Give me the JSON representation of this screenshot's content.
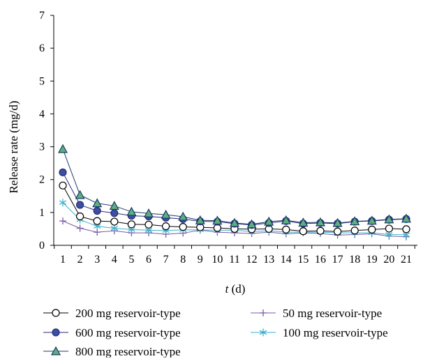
{
  "chart_data": {
    "type": "line",
    "title": "",
    "xlabel_var": "t",
    "xlabel_unit": " (d)",
    "ylabel": "Release rate (mg/d)",
    "ylim": [
      0,
      7
    ],
    "yticks": [
      0,
      1,
      2,
      3,
      4,
      5,
      6,
      7
    ],
    "x": [
      1,
      2,
      3,
      4,
      5,
      6,
      7,
      8,
      9,
      10,
      11,
      12,
      13,
      14,
      15,
      16,
      17,
      18,
      19,
      20,
      21
    ],
    "grid": false,
    "legend_position": "bottom",
    "series": [
      {
        "name": "200 mg reservoir-type",
        "marker": "open-circle",
        "color": "#000000",
        "marker_fill": "#ffffff",
        "values": [
          1.82,
          0.88,
          0.74,
          0.72,
          0.64,
          0.63,
          0.58,
          0.56,
          0.55,
          0.53,
          0.5,
          0.49,
          0.5,
          0.48,
          0.43,
          0.44,
          0.42,
          0.45,
          0.48,
          0.51,
          0.49
        ]
      },
      {
        "name": "600 mg reservoir-type",
        "marker": "filled-circle",
        "color": "#2a2a7a",
        "marker_fill": "#3a50a0",
        "values": [
          2.22,
          1.23,
          1.05,
          0.98,
          0.9,
          0.88,
          0.84,
          0.8,
          0.73,
          0.72,
          0.66,
          0.62,
          0.68,
          0.74,
          0.66,
          0.68,
          0.66,
          0.72,
          0.74,
          0.78,
          0.8
        ]
      },
      {
        "name": "800 mg reservoir-type",
        "marker": "triangle",
        "color": "#1a3a6a",
        "marker_fill": "#5cb07a",
        "values": [
          2.93,
          1.53,
          1.28,
          1.2,
          1.02,
          0.97,
          0.93,
          0.87,
          0.76,
          0.75,
          0.68,
          0.64,
          0.72,
          0.76,
          0.69,
          0.7,
          0.68,
          0.73,
          0.75,
          0.79,
          0.81
        ]
      },
      {
        "name": "50 mg reservoir-type",
        "marker": "plus",
        "color": "#7a5aa8",
        "marker_fill": "#7a5aa8",
        "values": [
          0.74,
          0.52,
          0.4,
          0.44,
          0.38,
          0.38,
          0.34,
          0.37,
          0.46,
          0.4,
          0.38,
          0.36,
          0.4,
          0.35,
          0.38,
          0.36,
          0.31,
          0.33,
          0.35,
          0.28,
          0.26
        ]
      },
      {
        "name": "100 mg reservoir-type",
        "marker": "asterisk",
        "color": "#3ab0c8",
        "marker_fill": "#3ab0c8",
        "values": [
          1.3,
          0.78,
          0.58,
          0.52,
          0.48,
          0.46,
          0.45,
          0.47,
          0.47,
          0.46,
          0.46,
          0.42,
          0.44,
          0.4,
          0.4,
          0.4,
          0.38,
          0.38,
          0.38,
          0.33,
          0.32
        ]
      }
    ]
  }
}
